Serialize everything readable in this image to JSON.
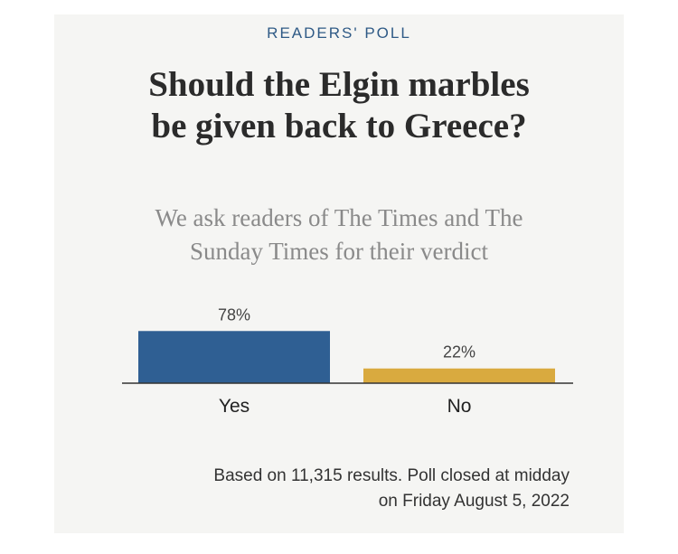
{
  "poll": {
    "eyebrow": "READERS' POLL",
    "title_line1": "Should the Elgin marbles",
    "title_line2": "be given back to Greece?",
    "subtitle_line1": "We ask readers of The Times and The",
    "subtitle_line2": "Sunday Times for their verdict",
    "footnote_line1": "Based on 11,315 results. Poll closed at midday",
    "footnote_line2": "on Friday August 5, 2022"
  },
  "colors": {
    "yes_bar": "#2f5f93",
    "no_bar": "#d9aa3f",
    "axis": "#333333",
    "eyebrow": "#2f5a86"
  },
  "chart_data": {
    "type": "bar",
    "categories": [
      "Yes",
      "No"
    ],
    "values": [
      78,
      22
    ],
    "value_labels": [
      "78%",
      "22%"
    ],
    "ylim": [
      0,
      100
    ],
    "title": "",
    "xlabel": "",
    "ylabel": "",
    "grid": false
  }
}
